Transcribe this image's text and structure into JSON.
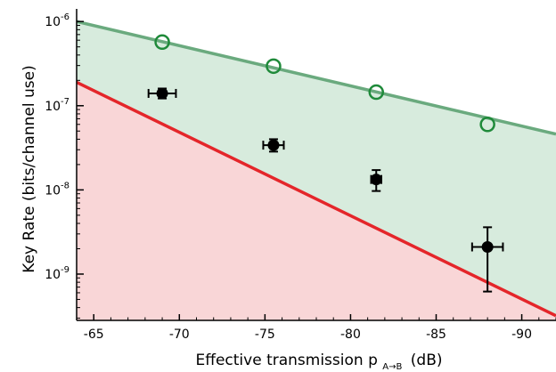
{
  "chart_data": {
    "type": "scatter",
    "title": "",
    "xlabel_main": "Effective transmission p",
    "xlabel_sub": "A→B",
    "xlabel_unit": "(dB)",
    "ylabel": "Key Rate (bits/channel use)",
    "xlim": [
      -64,
      -92
    ],
    "ylim_exponent": [
      -9.55,
      -5.85
    ],
    "y_scale": "log",
    "x_ticks": [
      -65,
      -70,
      -75,
      -80,
      -85,
      -90
    ],
    "x_tick_labels": [
      "-65",
      "-70",
      "-75",
      "-80",
      "-85",
      "-90"
    ],
    "y_ticks": [
      -6,
      -7,
      -8,
      -9
    ],
    "y_tick_base": "10",
    "y_tick_exponents": [
      "-6",
      "-7",
      "-8",
      "-9"
    ],
    "grid": false,
    "upper_bound_line": {
      "color": "#6aaa7e",
      "points": [
        [
          -64,
          1e-06
        ],
        [
          -92,
          4.6e-08
        ]
      ]
    },
    "lower_bound_line": {
      "color": "#e4262a",
      "points": [
        [
          -64,
          1.9e-07
        ],
        [
          -92,
          3.2e-10
        ]
      ]
    },
    "upper_region_color": "#d7ebdd",
    "lower_region_color": "#f9d6d7",
    "series": [
      {
        "marker": "open-circle",
        "color": "#1f8a3a",
        "x": [
          -69.0,
          -75.5,
          -81.5,
          -88.0
        ],
        "y": [
          5.7e-07,
          2.95e-07,
          1.45e-07,
          6e-08
        ]
      },
      {
        "marker": "filled-circle",
        "color": "#000000",
        "x": [
          -69.0,
          -75.5,
          -81.5,
          -88.0
        ],
        "y": [
          1.4e-07,
          3.4e-08,
          1.33e-08,
          2.1e-09
        ],
        "x_err": [
          0.8,
          0.6,
          0.3,
          0.9
        ],
        "y_low": [
          1.22e-07,
          2.85e-08,
          9.7e-09,
          6.2e-10
        ],
        "y_high": [
          1.6e-07,
          4e-08,
          1.72e-08,
          3.6e-09
        ]
      }
    ]
  }
}
